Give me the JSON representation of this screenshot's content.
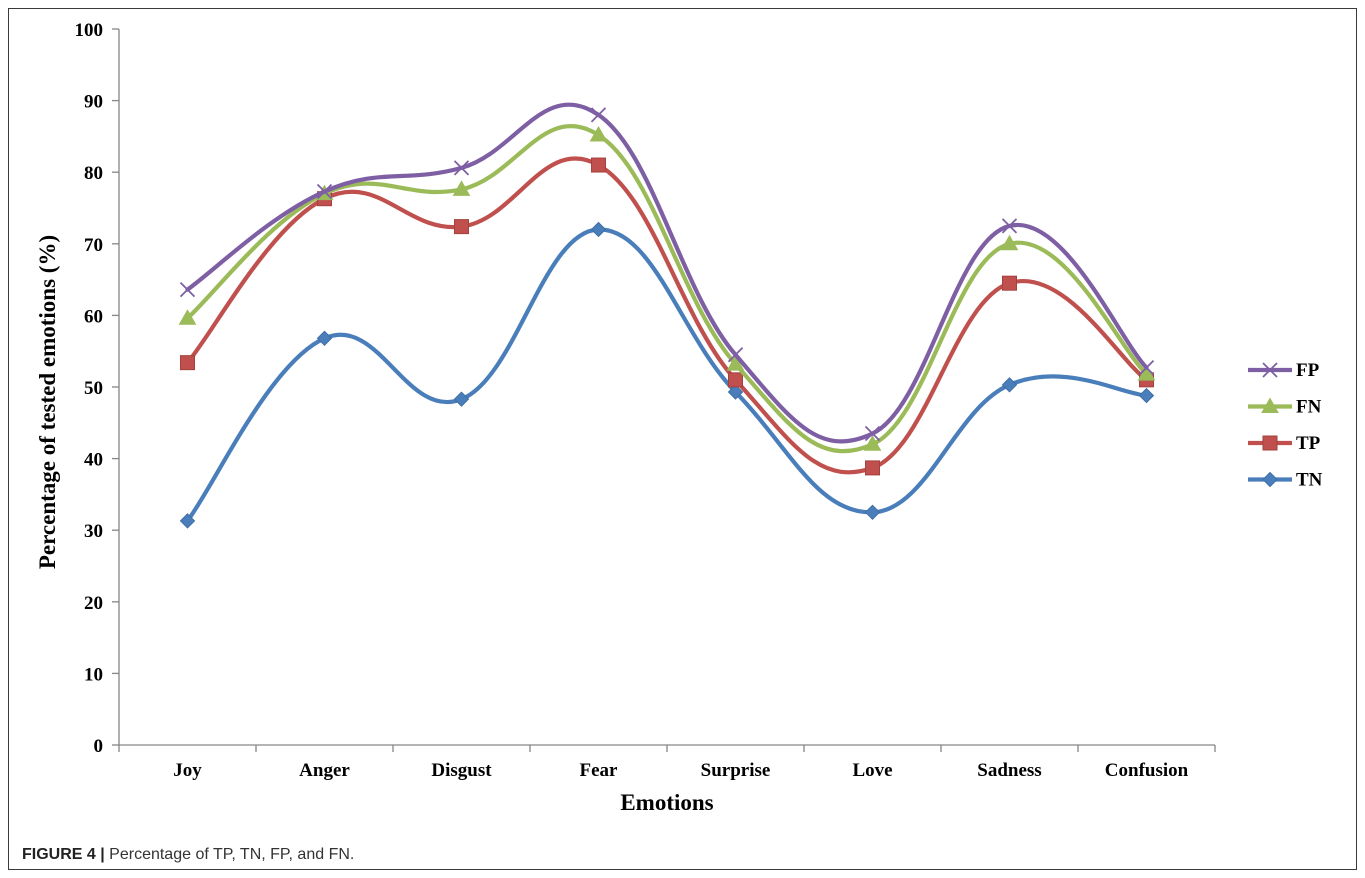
{
  "caption": {
    "label": "FIGURE 4 |",
    "text": " Percentage of TP, TN, FP, and FN."
  },
  "chart_data": {
    "type": "line",
    "smooth": true,
    "title": "",
    "xlabel": "Emotions",
    "ylabel": "Percentage of tested emotions  (%)",
    "ylim": [
      0,
      100
    ],
    "yticks": [
      0,
      10,
      20,
      30,
      40,
      50,
      60,
      70,
      80,
      90,
      100
    ],
    "grid": false,
    "legend_position": "right",
    "categories": [
      "Joy",
      "Anger",
      "Disgust",
      "Fear",
      "Surprise",
      "Love",
      "Sadness",
      "Confusion"
    ],
    "series": [
      {
        "name": "FP",
        "color": "#7E5FA4",
        "marker": "x",
        "values": [
          63.6,
          77.3,
          80.6,
          88.0,
          54.5,
          43.5,
          72.5,
          52.7
        ]
      },
      {
        "name": "FN",
        "color": "#9BBB59",
        "marker": "triangle",
        "values": [
          59.6,
          77.0,
          77.6,
          85.2,
          53.2,
          42.0,
          70.0,
          51.8
        ]
      },
      {
        "name": "TP",
        "color": "#C0504D",
        "marker": "square",
        "values": [
          53.4,
          76.3,
          72.4,
          81.0,
          51.0,
          38.7,
          64.5,
          51.0
        ]
      },
      {
        "name": "TN",
        "color": "#4A7EBB",
        "marker": "diamond",
        "values": [
          31.3,
          56.8,
          48.3,
          72.0,
          49.3,
          32.5,
          50.3,
          48.8
        ]
      }
    ]
  }
}
